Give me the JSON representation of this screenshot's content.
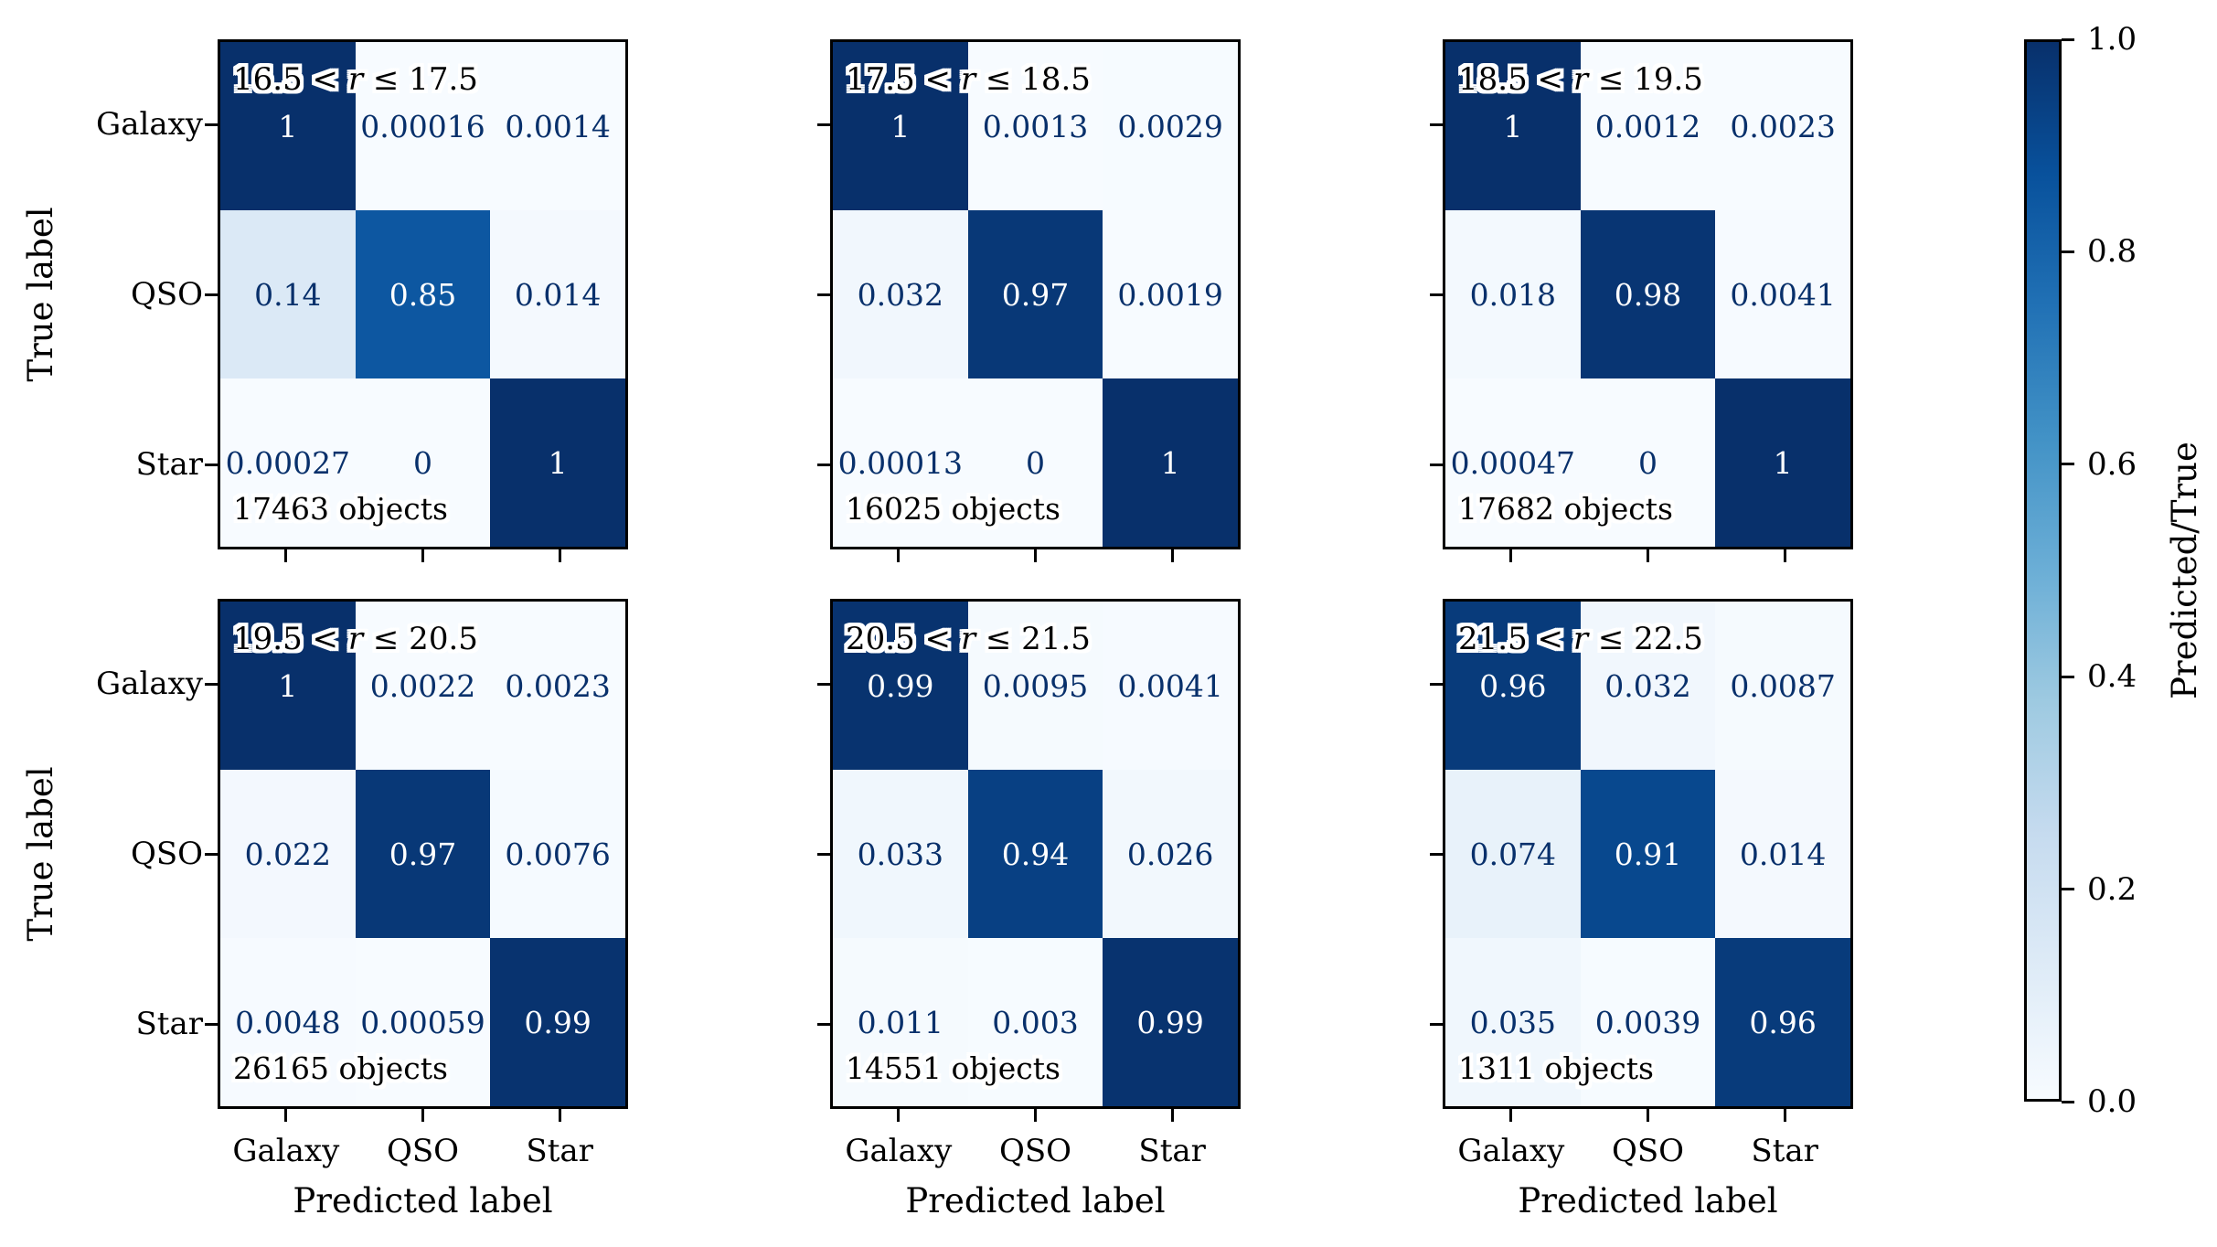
{
  "figure": {
    "xlabel": "Predicted label",
    "ylabel": "True label",
    "classes": [
      "Galaxy",
      "QSO",
      "Star"
    ],
    "colorbar": {
      "label": "Predicted/True",
      "ticks": [
        "1.0",
        "0.8",
        "0.6",
        "0.4",
        "0.2",
        "0.0"
      ]
    },
    "colors": {
      "cmap_low": "#f7fbff",
      "cmap_high": "#08306b",
      "dark_text": "#08306b",
      "light_text": "#ffffff",
      "axis_color": "#000000",
      "blues_stops": [
        [
          0.0,
          "#f7fbff"
        ],
        [
          0.125,
          "#deebf7"
        ],
        [
          0.25,
          "#c6dbef"
        ],
        [
          0.375,
          "#9ecae1"
        ],
        [
          0.5,
          "#6baed6"
        ],
        [
          0.625,
          "#4292c6"
        ],
        [
          0.75,
          "#2171b5"
        ],
        [
          0.875,
          "#08519c"
        ],
        [
          1.0,
          "#08306b"
        ]
      ]
    }
  },
  "chart_data": {
    "type": "heatmap",
    "subtype": "confusion-matrix-grid",
    "categories": [
      "Galaxy",
      "QSO",
      "Star"
    ],
    "xlabel": "Predicted label",
    "ylabel": "True label",
    "colorbar_label": "Predicted/True",
    "colorbar_ticks": [
      1.0,
      0.8,
      0.6,
      0.4,
      0.2,
      0.0
    ],
    "value_range": [
      0,
      1
    ],
    "grid": {
      "rows": 2,
      "cols": 3
    },
    "panels": [
      {
        "r_low": "16.5",
        "r_var": "r",
        "r_high": "17.5",
        "title_text": "16.5 < r ≤ 17.5",
        "objects": 17463,
        "objects_label": "17463 objects",
        "matrix_display": [
          [
            "1",
            "0.00016",
            "0.0014"
          ],
          [
            "0.14",
            "0.85",
            "0.014"
          ],
          [
            "0.00027",
            "0",
            "1"
          ]
        ],
        "matrix_values": [
          [
            1.0,
            0.00016,
            0.0014
          ],
          [
            0.14,
            0.85,
            0.014
          ],
          [
            0.00027,
            0.0,
            1.0
          ]
        ]
      },
      {
        "r_low": "17.5",
        "r_var": "r",
        "r_high": "18.5",
        "title_text": "17.5 < r ≤ 18.5",
        "objects": 16025,
        "objects_label": "16025 objects",
        "matrix_display": [
          [
            "1",
            "0.0013",
            "0.0029"
          ],
          [
            "0.032",
            "0.97",
            "0.0019"
          ],
          [
            "0.00013",
            "0",
            "1"
          ]
        ],
        "matrix_values": [
          [
            1.0,
            0.0013,
            0.0029
          ],
          [
            0.032,
            0.97,
            0.0019
          ],
          [
            0.00013,
            0.0,
            1.0
          ]
        ]
      },
      {
        "r_low": "18.5",
        "r_var": "r",
        "r_high": "19.5",
        "title_text": "18.5 < r ≤ 19.5",
        "objects": 17682,
        "objects_label": "17682 objects",
        "matrix_display": [
          [
            "1",
            "0.0012",
            "0.0023"
          ],
          [
            "0.018",
            "0.98",
            "0.0041"
          ],
          [
            "0.00047",
            "0",
            "1"
          ]
        ],
        "matrix_values": [
          [
            1.0,
            0.0012,
            0.0023
          ],
          [
            0.018,
            0.98,
            0.0041
          ],
          [
            0.00047,
            0.0,
            1.0
          ]
        ]
      },
      {
        "r_low": "19.5",
        "r_var": "r",
        "r_high": "20.5",
        "title_text": "19.5 < r ≤ 20.5",
        "objects": 26165,
        "objects_label": "26165 objects",
        "matrix_display": [
          [
            "1",
            "0.0022",
            "0.0023"
          ],
          [
            "0.022",
            "0.97",
            "0.0076"
          ],
          [
            "0.0048",
            "0.00059",
            "0.99"
          ]
        ],
        "matrix_values": [
          [
            1.0,
            0.0022,
            0.0023
          ],
          [
            0.022,
            0.97,
            0.0076
          ],
          [
            0.0048,
            0.00059,
            0.99
          ]
        ]
      },
      {
        "r_low": "20.5",
        "r_var": "r",
        "r_high": "21.5",
        "title_text": "20.5 < r ≤ 21.5",
        "objects": 14551,
        "objects_label": "14551 objects",
        "matrix_display": [
          [
            "0.99",
            "0.0095",
            "0.0041"
          ],
          [
            "0.033",
            "0.94",
            "0.026"
          ],
          [
            "0.011",
            "0.003",
            "0.99"
          ]
        ],
        "matrix_values": [
          [
            0.99,
            0.0095,
            0.0041
          ],
          [
            0.033,
            0.94,
            0.026
          ],
          [
            0.011,
            0.003,
            0.99
          ]
        ]
      },
      {
        "r_low": "21.5",
        "r_var": "r",
        "r_high": "22.5",
        "title_text": "21.5 < r ≤ 22.5",
        "objects": 1311,
        "objects_label": "1311 objects",
        "matrix_display": [
          [
            "0.96",
            "0.032",
            "0.0087"
          ],
          [
            "0.074",
            "0.91",
            "0.014"
          ],
          [
            "0.035",
            "0.0039",
            "0.96"
          ]
        ],
        "matrix_values": [
          [
            0.96,
            0.032,
            0.0087
          ],
          [
            0.074,
            0.91,
            0.014
          ],
          [
            0.035,
            0.0039,
            0.96
          ]
        ]
      }
    ]
  }
}
